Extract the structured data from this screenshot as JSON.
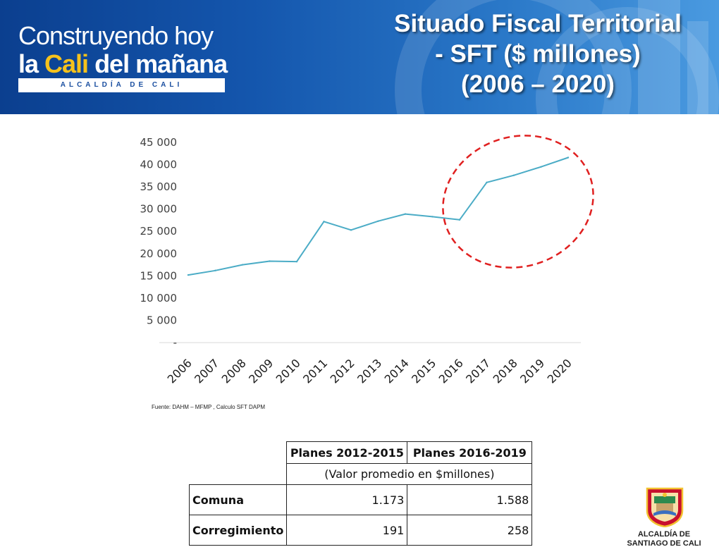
{
  "banner": {
    "logo_line1": "Construyendo hoy",
    "logo_line2_prefix": "la ",
    "logo_line2_cali": "Cali",
    "logo_line2_suffix": " del mañana",
    "logo_strip": "ALCALDÍA DE CALI",
    "title_line1": "Situado Fiscal Territorial",
    "title_line2": "- SFT ($ millones)",
    "title_line3": "(2006 – 2020)"
  },
  "chart_data": {
    "type": "line",
    "title": "",
    "xlabel": "",
    "ylabel": "",
    "x": [
      "2006",
      "2007",
      "2008",
      "2009",
      "2010",
      "2011",
      "2012",
      "2013",
      "2014",
      "2015",
      "2016",
      "2017",
      "2018",
      "2019",
      "2020"
    ],
    "series": [
      {
        "values": [
          15200,
          16200,
          17500,
          18300,
          18200,
          27200,
          25300,
          27300,
          28900,
          28300,
          27600,
          36000,
          37600,
          39500,
          41600
        ],
        "color": "#4bacc6"
      }
    ],
    "ylim": [
      0,
      45000
    ],
    "yticks": [
      0,
      5000,
      10000,
      15000,
      20000,
      25000,
      30000,
      35000,
      40000,
      45000
    ],
    "ytick_labels": [
      "-",
      "5 000",
      "10 000",
      "15 000",
      "20 000",
      "25 000",
      "30 000",
      "35 000",
      "40 000",
      "45 000"
    ],
    "grid": false,
    "highlight": {
      "shape": "ellipse",
      "style": "dashed",
      "color": "#e02020",
      "covers_x": [
        "2016",
        "2020"
      ]
    }
  },
  "source": "Fuente: DAHM – MFMP , Calculo SFT DAPM",
  "table": {
    "headers": [
      "Planes 2012-2015",
      "Planes 2016-2019"
    ],
    "subheader": "(Valor promedio en $millones)",
    "rows": [
      {
        "label": "Comuna",
        "values": [
          "1.173",
          "1.588"
        ]
      },
      {
        "label": "Corregimiento",
        "values": [
          "191",
          "258"
        ]
      }
    ]
  },
  "crest": {
    "label_line1": "ALCALDÍA DE",
    "label_line2": "SANTIAGO DE CALI"
  }
}
